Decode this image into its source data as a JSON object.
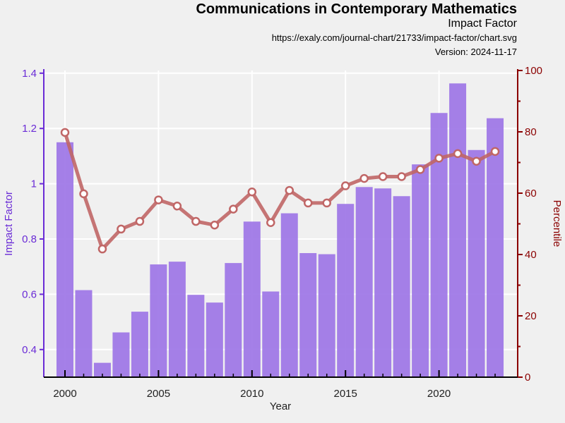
{
  "header": {
    "title": "Communications in Contemporary Mathematics",
    "subtitle": "Impact Factor",
    "url": "https://exaly.com/journal-chart/21733/impact-factor/chart.svg",
    "version": "Version: 2024-11-17"
  },
  "chart_data": {
    "type": "bar",
    "xlabel": "Year",
    "ylabel_left": "Impact Factor",
    "ylabel_right": "Percentile",
    "x_ticks": [
      2000,
      2005,
      2010,
      2015,
      2020
    ],
    "y_left_ticks": [
      "0.4",
      "0.6",
      "0.8",
      "1",
      "1.2",
      "1.4"
    ],
    "y_right_ticks": [
      "0",
      "20",
      "40",
      "60",
      "80",
      "100"
    ],
    "ylim_left": [
      0.3,
      1.41
    ],
    "ylim_right": [
      0,
      100
    ],
    "grid": true,
    "colors": {
      "bars": "#9b72e6",
      "line": "#c06666",
      "left_axis": "#6a2bd6",
      "right_axis": "#8b0000"
    },
    "series": [
      {
        "type": "bar",
        "axis": "left",
        "x": [
          2000,
          2001,
          2002,
          2003,
          2004,
          2005,
          2006,
          2007,
          2008,
          2009,
          2010,
          2011,
          2012,
          2013,
          2014,
          2015,
          2016,
          2017,
          2018,
          2019,
          2020,
          2021,
          2022,
          2023
        ],
        "values": [
          1.15,
          0.615,
          0.352,
          0.462,
          0.537,
          0.708,
          0.718,
          0.598,
          0.57,
          0.713,
          0.863,
          0.61,
          0.893,
          0.749,
          0.745,
          0.927,
          0.988,
          0.983,
          0.955,
          1.07,
          1.256,
          1.363,
          1.122,
          1.237
        ]
      },
      {
        "type": "line",
        "axis": "right",
        "x": [
          2000,
          2001,
          2002,
          2003,
          2004,
          2005,
          2006,
          2007,
          2008,
          2009,
          2010,
          2011,
          2012,
          2013,
          2014,
          2015,
          2016,
          2017,
          2018,
          2019,
          2020,
          2021,
          2022,
          2023
        ],
        "values": [
          79.8,
          59.8,
          41.8,
          48.3,
          50.8,
          57.8,
          55.8,
          50.8,
          49.6,
          54.8,
          60.4,
          50.4,
          60.9,
          56.8,
          56.8,
          62.4,
          64.8,
          65.4,
          65.4,
          67.7,
          71.4,
          72.9,
          70.4,
          73.6
        ]
      }
    ]
  }
}
